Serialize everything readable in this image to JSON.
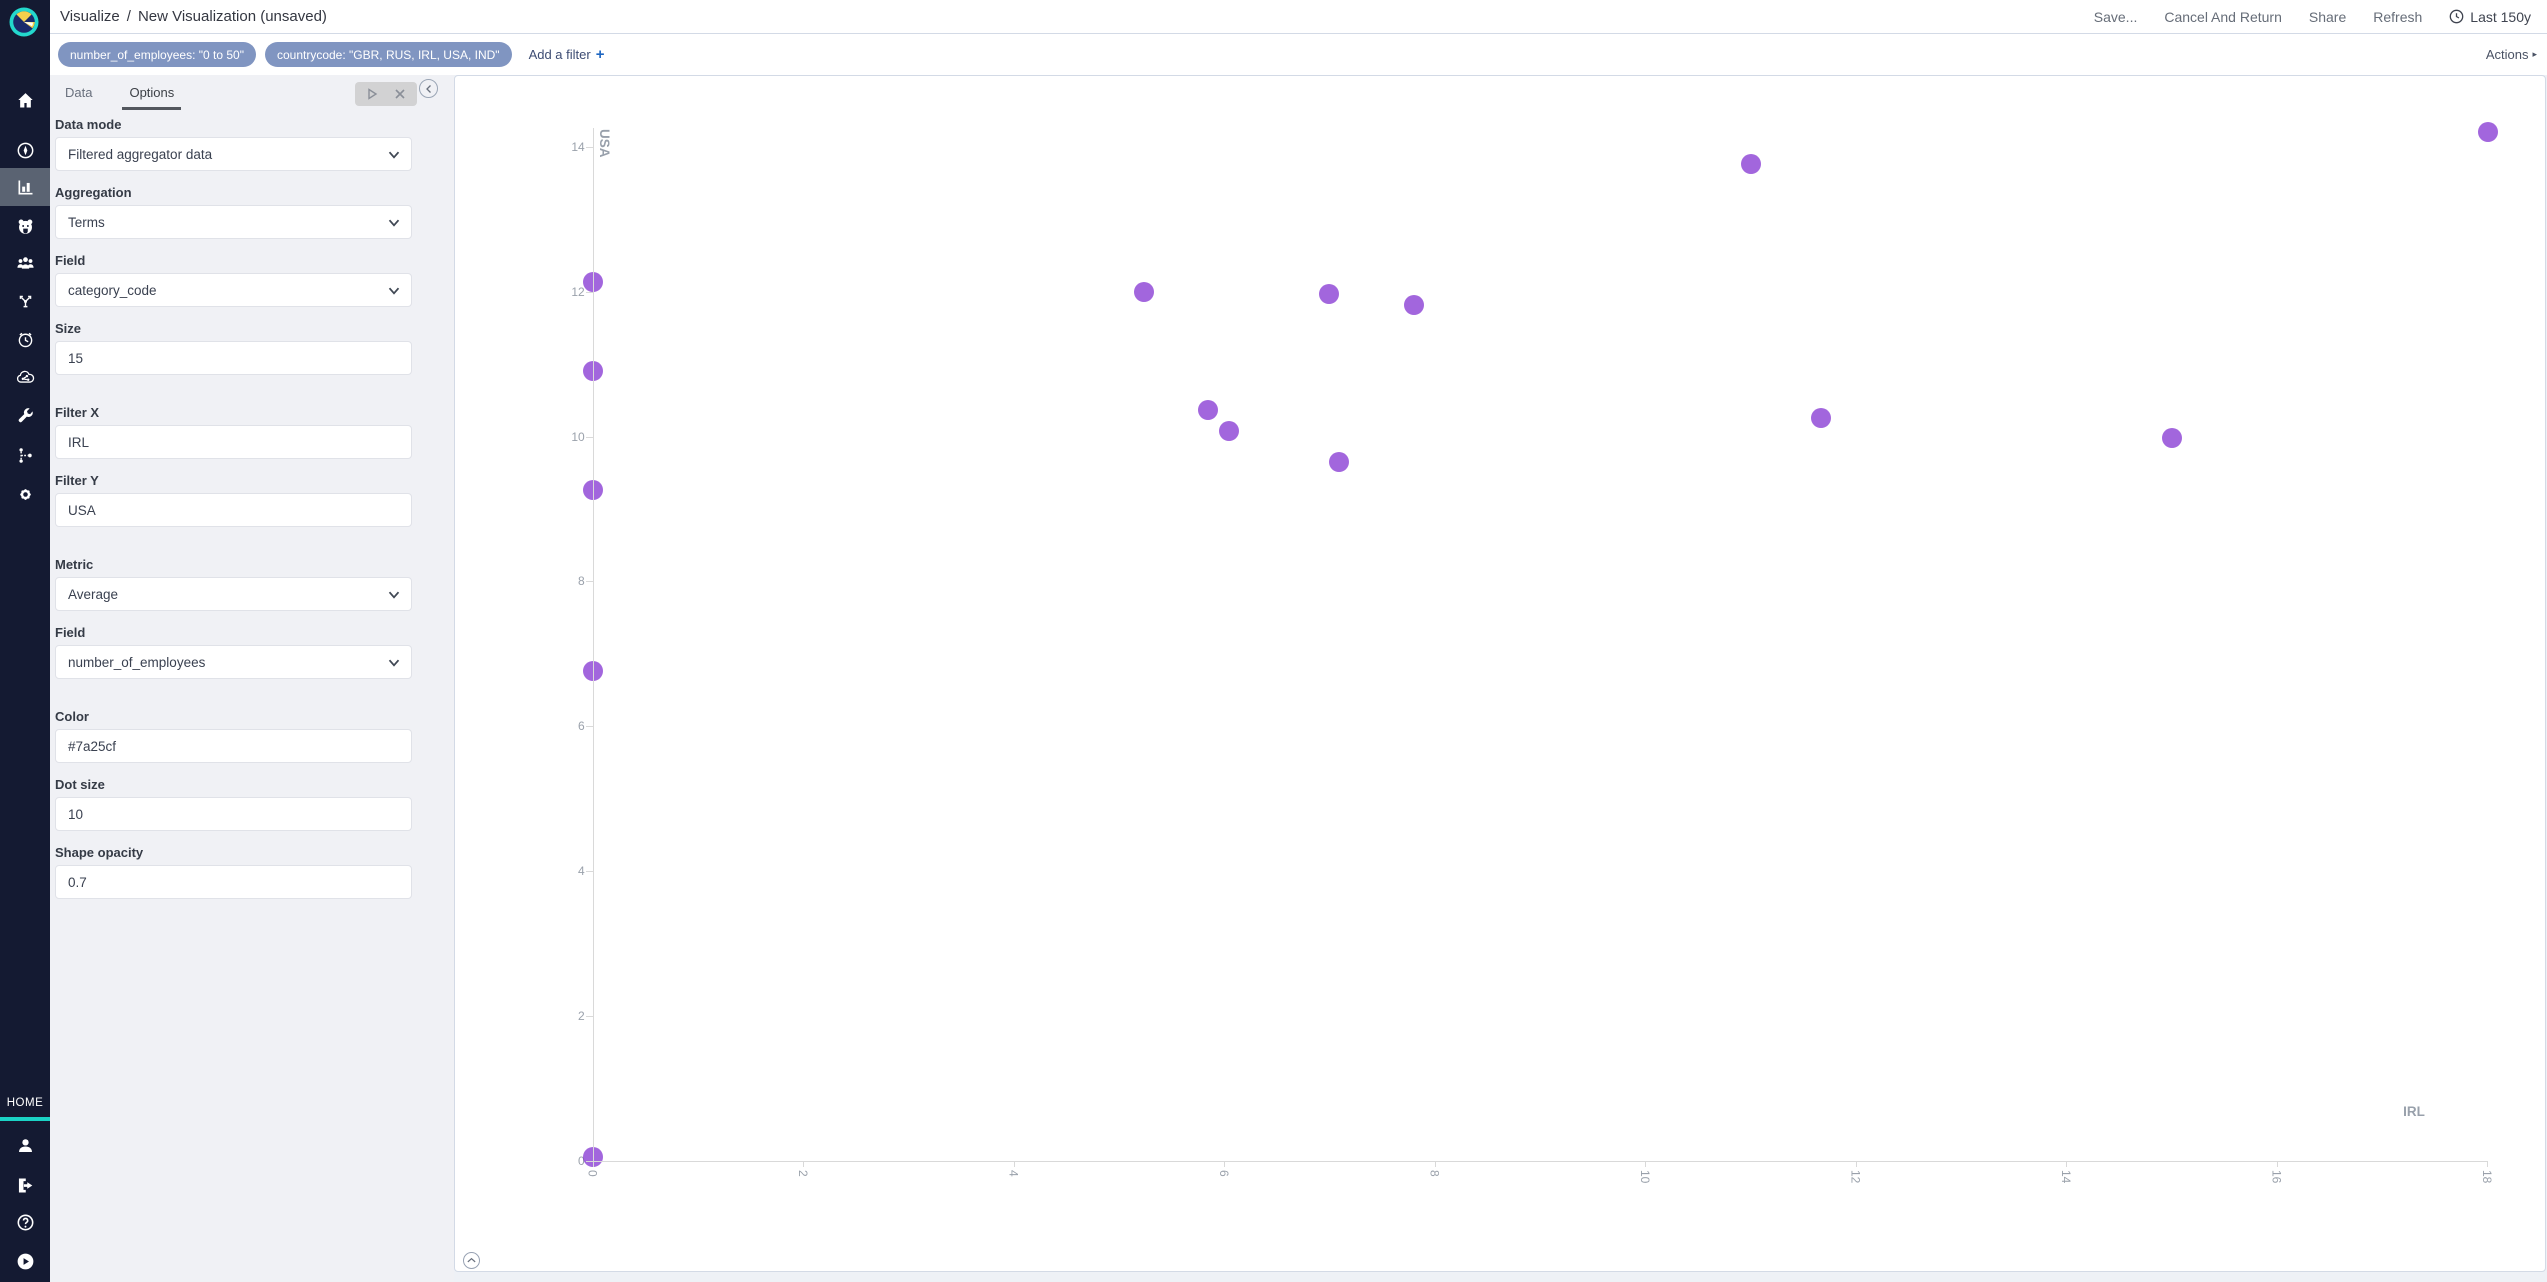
{
  "colors": {
    "nav_bg": "#141a32",
    "nav_selected_bg": "#5a6372",
    "accent_teal": "#1bd3c6",
    "pill_bg": "#8095c1",
    "link_blue": "#1e66c1",
    "axis_line": "#d9d9d9",
    "axis_text": "#9aa1ab"
  },
  "header": {
    "breadcrumb_app": "Visualize",
    "breadcrumb_sep": "/",
    "breadcrumb_page": "New Visualization (unsaved)",
    "buttons": [
      {
        "name": "save-button",
        "label": "Save..."
      },
      {
        "name": "cancel-and-return-button",
        "label": "Cancel And Return"
      },
      {
        "name": "share-button",
        "label": "Share"
      },
      {
        "name": "refresh-button",
        "label": "Refresh"
      }
    ],
    "time_range": "Last 150y"
  },
  "filter_bar": {
    "pills": [
      "number_of_employees: \"0 to 50\"",
      "countrycode: \"GBR, RUS, IRL, USA, IND\""
    ],
    "add_filter": "Add a filter",
    "add_filter_plus": "+",
    "actions": "Actions",
    "actions_arrow": "▸"
  },
  "sidebar": {
    "home_label": "HOME",
    "top_icons": [
      "home-icon",
      "discover-compass-icon",
      "visualize-bar-chart-icon",
      "bear-face-icon",
      "users-group-icon",
      "share-network-icon",
      "alarm-clock-icon",
      "cloud-nodes-icon",
      "wrench-icon",
      "pipeline-icon",
      "gear-icon"
    ],
    "active_icon": "visualize-bar-chart-icon",
    "bottom_icons": [
      "user-profile-icon",
      "logout-icon",
      "help-icon",
      "play-circle-icon"
    ]
  },
  "panel": {
    "tabs": [
      {
        "label": "Data",
        "active": false
      },
      {
        "label": "Options",
        "active": true
      }
    ],
    "fields": [
      {
        "name": "data-mode",
        "label": "Data mode",
        "type": "select",
        "value": "Filtered aggregator data"
      },
      {
        "name": "aggregation",
        "label": "Aggregation",
        "type": "select",
        "value": "Terms"
      },
      {
        "name": "aggregation-field",
        "label": "Field",
        "type": "select",
        "value": "category_code"
      },
      {
        "name": "size",
        "label": "Size",
        "type": "input",
        "value": "15"
      },
      {
        "name": "filter-x",
        "label": "Filter X",
        "type": "input",
        "value": "IRL",
        "gap_before": true
      },
      {
        "name": "filter-y",
        "label": "Filter Y",
        "type": "input",
        "value": "USA"
      },
      {
        "name": "metric",
        "label": "Metric",
        "type": "select",
        "value": "Average",
        "gap_before": true
      },
      {
        "name": "metric-field",
        "label": "Field",
        "type": "select",
        "value": "number_of_employees"
      },
      {
        "name": "color",
        "label": "Color",
        "type": "input",
        "value": "#7a25cf",
        "gap_before": true
      },
      {
        "name": "dot-size",
        "label": "Dot size",
        "type": "input",
        "value": "10"
      },
      {
        "name": "shape-opacity",
        "label": "Shape opacity",
        "type": "input",
        "value": "0.7"
      }
    ]
  },
  "chart_data": {
    "type": "scatter",
    "title": "",
    "xlabel": "IRL",
    "ylabel": "USA",
    "x_ticks": [
      0,
      2,
      4,
      6,
      8,
      10,
      12,
      14,
      16,
      18
    ],
    "y_ticks": [
      0,
      2,
      4,
      6,
      8,
      10,
      12,
      14
    ],
    "xlim": [
      0,
      18.1
    ],
    "ylim": [
      0,
      14.3
    ],
    "grid": false,
    "legend": null,
    "dot_color": "#7a25cf",
    "dot_opacity": 0.7,
    "dot_radius": 10,
    "points": [
      {
        "x": 0,
        "y": 12.13
      },
      {
        "x": 0,
        "y": 10.9
      },
      {
        "x": 0,
        "y": 9.26
      },
      {
        "x": 0,
        "y": 6.76
      },
      {
        "x": 0,
        "y": 0.05
      },
      {
        "x": 5.24,
        "y": 12.0
      },
      {
        "x": 5.85,
        "y": 10.36
      },
      {
        "x": 6.05,
        "y": 10.07
      },
      {
        "x": 7.0,
        "y": 11.97
      },
      {
        "x": 7.09,
        "y": 9.65
      },
      {
        "x": 7.8,
        "y": 11.82
      },
      {
        "x": 11.01,
        "y": 13.76
      },
      {
        "x": 11.67,
        "y": 10.25
      },
      {
        "x": 15.01,
        "y": 9.98
      },
      {
        "x": 18.01,
        "y": 14.21
      }
    ]
  }
}
